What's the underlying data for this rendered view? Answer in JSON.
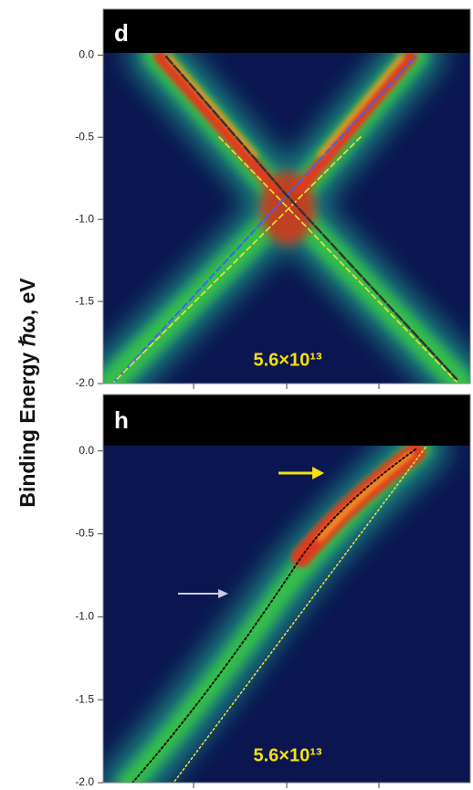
{
  "chart_data": [
    {
      "type": "heatmap",
      "panel_label": "d",
      "annotation": "5.6×10¹³",
      "ylabel": "Binding Energy ℏω, eV",
      "ylim": [
        -2.0,
        0.28
      ],
      "yticks": [
        {
          "value": 0,
          "label": "0.0"
        },
        -0.5,
        {
          "value": -1,
          "label": "-1.0"
        },
        -1.5,
        {
          "value": -2,
          "label": "-2.0"
        }
      ]
    },
    {
      "type": "heatmap",
      "panel_label": "h",
      "annotation": "5.6×10¹³",
      "ylim": [
        -2.0,
        0.34
      ],
      "yticks": [
        {
          "value": 0,
          "label": "0.0"
        },
        -0.5,
        {
          "value": -1,
          "label": "-1.0"
        },
        -1.5,
        {
          "value": -2,
          "label": "-2.0"
        }
      ]
    }
  ]
}
